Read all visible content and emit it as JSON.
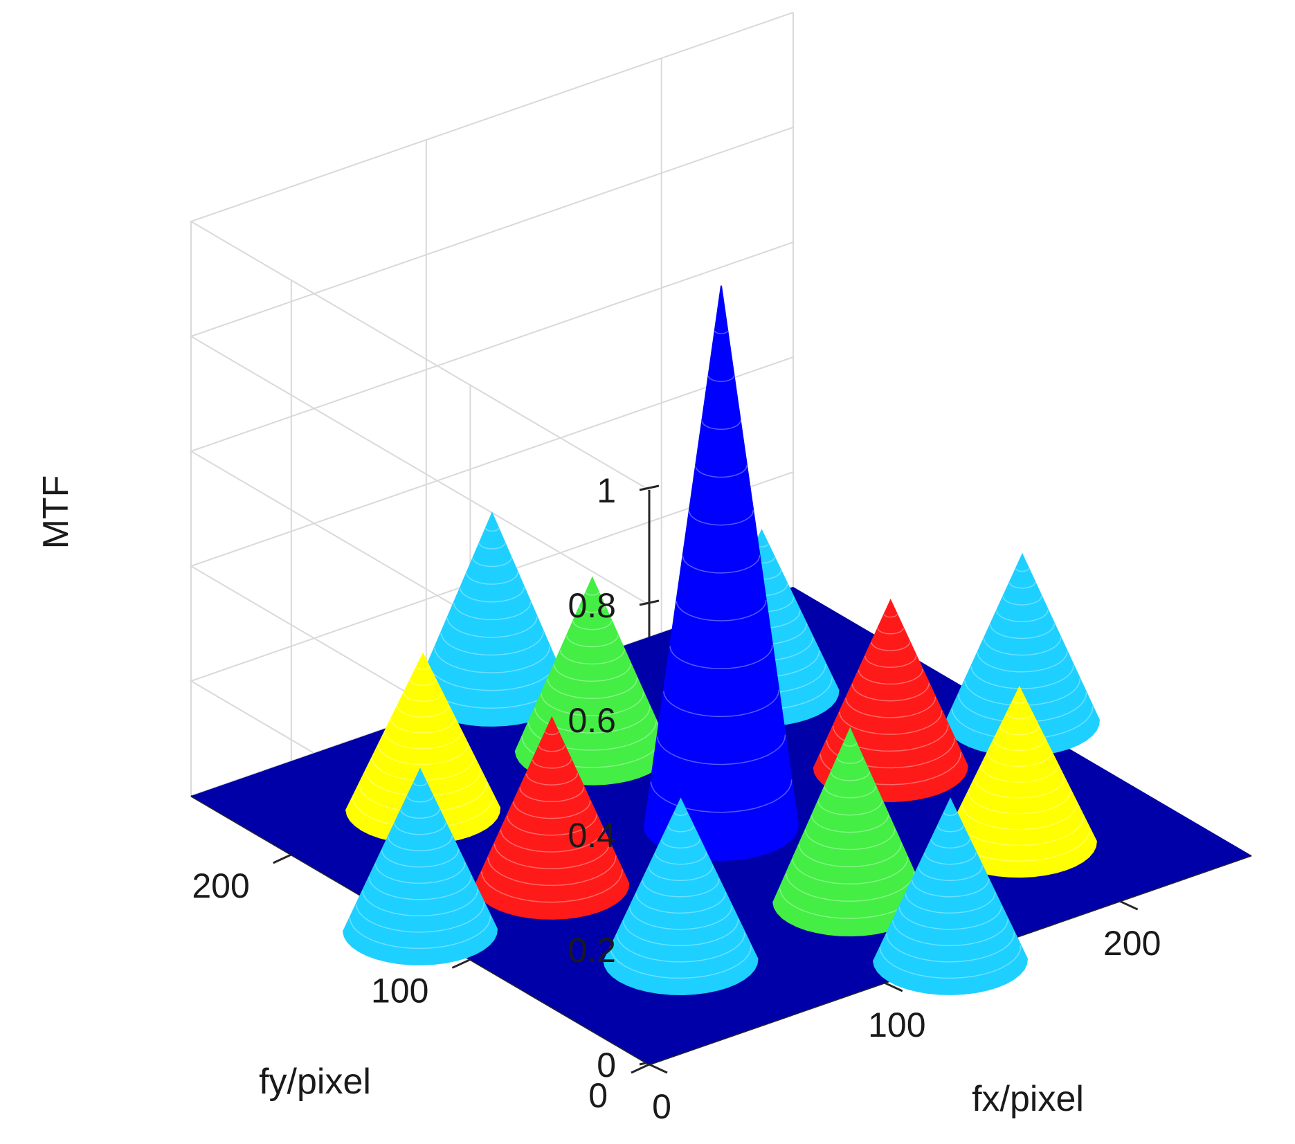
{
  "chart_data": {
    "type": "surface3d",
    "xlabel": "fx/pixel",
    "ylabel": "fy/pixel",
    "zlabel": "MTF",
    "xlim": [
      0,
      256
    ],
    "ylim": [
      0,
      256
    ],
    "zlim": [
      0,
      1
    ],
    "x_ticks": [
      "0",
      "100",
      "200"
    ],
    "y_ticks": [
      "0",
      "100",
      "200"
    ],
    "z_ticks": [
      "0",
      "0.2",
      "0.4",
      "0.6",
      "0.8",
      "1"
    ],
    "x_tick_values": [
      0,
      100,
      200
    ],
    "y_tick_values": [
      0,
      100,
      200
    ],
    "z_tick_values": [
      0,
      0.2,
      0.4,
      0.6,
      0.8,
      1
    ],
    "grid": true,
    "floor_color": "#0000a8",
    "peaks": [
      {
        "fx": 128,
        "fy": 128,
        "mtf": 0.94,
        "color": "#0000ff"
      },
      {
        "fx": 200,
        "fy": 128,
        "mtf": 0.29,
        "color": "#ff1a1a"
      },
      {
        "fx": 56,
        "fy": 128,
        "mtf": 0.29,
        "color": "#ff1a1a"
      },
      {
        "fx": 128,
        "fy": 200,
        "mtf": 0.3,
        "color": "#44ee44"
      },
      {
        "fx": 128,
        "fy": 56,
        "mtf": 0.3,
        "color": "#44ee44"
      },
      {
        "fx": 200,
        "fy": 56,
        "mtf": 0.27,
        "color": "#ffff00"
      },
      {
        "fx": 56,
        "fy": 200,
        "mtf": 0.27,
        "color": "#ffff00"
      },
      {
        "fx": 200,
        "fy": 200,
        "mtf": 0.28,
        "color": "#1ed0ff"
      },
      {
        "fx": 56,
        "fy": 56,
        "mtf": 0.28,
        "color": "#1ed0ff"
      },
      {
        "fx": 128,
        "fy": 256,
        "mtf": 0.31,
        "color": "#1ed0ff"
      },
      {
        "fx": 256,
        "fy": 128,
        "mtf": 0.29,
        "color": "#1ed0ff"
      },
      {
        "fx": 128,
        "fy": 0,
        "mtf": 0.28,
        "color": "#1ed0ff"
      },
      {
        "fx": 0,
        "fy": 128,
        "mtf": 0.28,
        "color": "#1ed0ff"
      }
    ]
  }
}
